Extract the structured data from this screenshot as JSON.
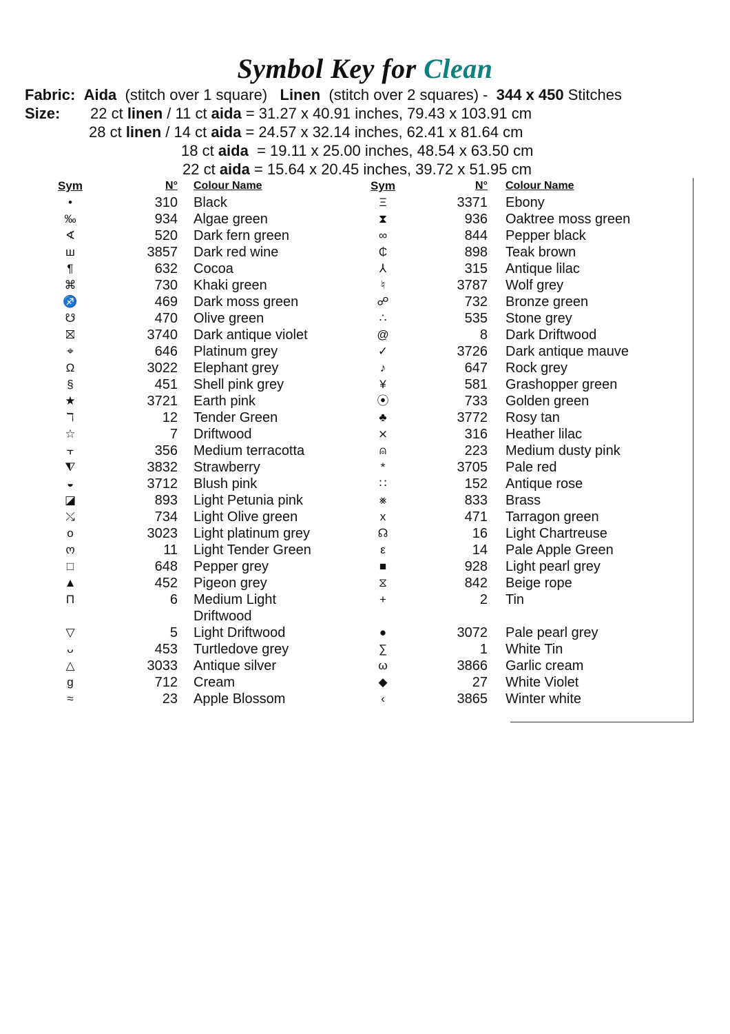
{
  "title": {
    "prefix": "Symbol Key for",
    "pattern_name": "Clean",
    "accent_color": "#0e8080"
  },
  "fabric": {
    "label": "Fabric:",
    "aida": "Aida",
    "aida_note": "(stitch over 1 square)",
    "linen": "Linen",
    "linen_note": "(stitch over 2 squares) -",
    "stitches": "344 x 450",
    "stitches_label": "Stitches"
  },
  "size": {
    "label": "Size:",
    "lines": [
      {
        "a": "22 ct ",
        "b": "linen",
        "c": " / 11 ct ",
        "d": "aida",
        "e": " = 31.27 x 40.91 inches, 79.43 x 103.91 cm"
      },
      {
        "a": "28 ct ",
        "b": "linen",
        "c": " / 14 ct ",
        "d": "aida",
        "e": " = 24.57 x 32.14 inches, 62.41 x 81.64 cm"
      },
      {
        "a": "18 ct ",
        "b": "aida",
        "c": "",
        "d": "",
        "e": "  = 19.11 x 25.00 inches, 48.54 x 63.50 cm"
      },
      {
        "a": "22 ct ",
        "b": "aida",
        "c": "",
        "d": "",
        "e": " = 15.64 x 20.45 inches, 39.72 x 51.95 cm"
      }
    ]
  },
  "headers": {
    "sym": "Sym",
    "num": "N°",
    "name": "Colour Name"
  },
  "left": [
    {
      "sym": "•",
      "num": "310",
      "name": "Black"
    },
    {
      "sym": "‰",
      "num": "934",
      "name": "Algae green"
    },
    {
      "sym": "∢",
      "num": "520",
      "name": "Dark fern green"
    },
    {
      "sym": "ш",
      "num": "3857",
      "name": "Dark red wine"
    },
    {
      "sym": "¶",
      "num": "632",
      "name": "Cocoa"
    },
    {
      "sym": "⌘",
      "num": "730",
      "name": "Khaki green"
    },
    {
      "sym": "♐",
      "num": "469",
      "name": "Dark moss green"
    },
    {
      "sym": "☋",
      "num": "470",
      "name": "Olive green"
    },
    {
      "sym": "⛝",
      "num": "3740",
      "name": "Dark antique violet"
    },
    {
      "sym": "⌖",
      "num": "646",
      "name": "Platinum grey"
    },
    {
      "sym": "Ω",
      "num": "3022",
      "name": "Elephant grey"
    },
    {
      "sym": "§",
      "num": "451",
      "name": "Shell pink grey"
    },
    {
      "sym": "★",
      "num": "3721",
      "name": "Earth pink"
    },
    {
      "sym": "ℸ",
      "num": "12",
      "name": "Tender Green"
    },
    {
      "sym": "☆",
      "num": "7",
      "name": "Driftwood"
    },
    {
      "sym": "⫟",
      "num": "356",
      "name": "Medium terracotta"
    },
    {
      "sym": "⧨",
      "num": "3832",
      "name": "Strawberry"
    },
    {
      "sym": "◒",
      "num": "3712",
      "name": "Blush pink"
    },
    {
      "sym": "◪",
      "num": "893",
      "name": "Light Petunia pink"
    },
    {
      "sym": "⤯",
      "num": "734",
      "name": "Light Olive green"
    },
    {
      "sym": "o",
      "num": "3023",
      "name": "Light platinum grey"
    },
    {
      "sym": "ო",
      "num": "11",
      "name": "Light Tender Green"
    },
    {
      "sym": "□",
      "num": "648",
      "name": "Pepper grey"
    },
    {
      "sym": "▲",
      "num": "452",
      "name": "Pigeon grey"
    },
    {
      "sym": "Π",
      "num": "6",
      "name": "Medium Light Driftwood"
    },
    {
      "sym": "▽",
      "num": "5",
      "name": "Light Driftwood"
    },
    {
      "sym": "ᴗ",
      "num": "453",
      "name": "Turtledove grey"
    },
    {
      "sym": "△",
      "num": "3033",
      "name": "Antique silver"
    },
    {
      "sym": "g",
      "num": "712",
      "name": "Cream"
    },
    {
      "sym": "≈",
      "num": "23",
      "name": "Apple Blossom"
    }
  ],
  "right": [
    {
      "sym": "Ξ",
      "num": "3371",
      "name": "Ebony"
    },
    {
      "sym": "⧗",
      "num": "936",
      "name": "Oaktree moss green"
    },
    {
      "sym": "∞",
      "num": "844",
      "name": "Pepper black"
    },
    {
      "sym": "₵",
      "num": "898",
      "name": "Teak brown"
    },
    {
      "sym": "⅄",
      "num": "315",
      "name": "Antique lilac"
    },
    {
      "sym": "♮",
      "num": "3787",
      "name": "Wolf grey"
    },
    {
      "sym": "☍",
      "num": "732",
      "name": "Bronze green"
    },
    {
      "sym": "∴",
      "num": "535",
      "name": "Stone grey"
    },
    {
      "sym": "@",
      "num": "8",
      "name": "Dark Driftwood"
    },
    {
      "sym": "✓",
      "num": "3726",
      "name": "Dark antique mauve"
    },
    {
      "sym": "♪",
      "num": "647",
      "name": "Rock grey"
    },
    {
      "sym": "¥",
      "num": "581",
      "name": "Grashopper green"
    },
    {
      "sym": "⦿",
      "num": "733",
      "name": "Golden green"
    },
    {
      "sym": "♣",
      "num": "3772",
      "name": "Rosy tan"
    },
    {
      "sym": "⨯",
      "num": "316",
      "name": "Heather lilac"
    },
    {
      "sym": "⍝",
      "num": "223",
      "name": "Medium dusty pink"
    },
    {
      "sym": "*",
      "num": "3705",
      "name": "Pale red"
    },
    {
      "sym": "∷",
      "num": "152",
      "name": "Antique rose"
    },
    {
      "sym": "⨳",
      "num": "833",
      "name": "Brass"
    },
    {
      "sym": "x",
      "num": "471",
      "name": "Tarragon green"
    },
    {
      "sym": "☊",
      "num": "16",
      "name": "Light Chartreuse"
    },
    {
      "sym": "ε",
      "num": "14",
      "name": "Pale Apple Green"
    },
    {
      "sym": "■",
      "num": "928",
      "name": "Light pearl grey"
    },
    {
      "sym": "⧖",
      "num": "842",
      "name": "Beige rope"
    },
    {
      "sym": "+",
      "num": "2",
      "name": "Tin"
    },
    {
      "sym": "●",
      "num": "3072",
      "name": "Pale pearl grey"
    },
    {
      "sym": "∑",
      "num": "1",
      "name": "White Tin"
    },
    {
      "sym": "ω",
      "num": "3866",
      "name": "Garlic cream"
    },
    {
      "sym": "◆",
      "num": "27",
      "name": "White Violet"
    },
    {
      "sym": "‹",
      "num": "3865",
      "name": "Winter white"
    }
  ]
}
